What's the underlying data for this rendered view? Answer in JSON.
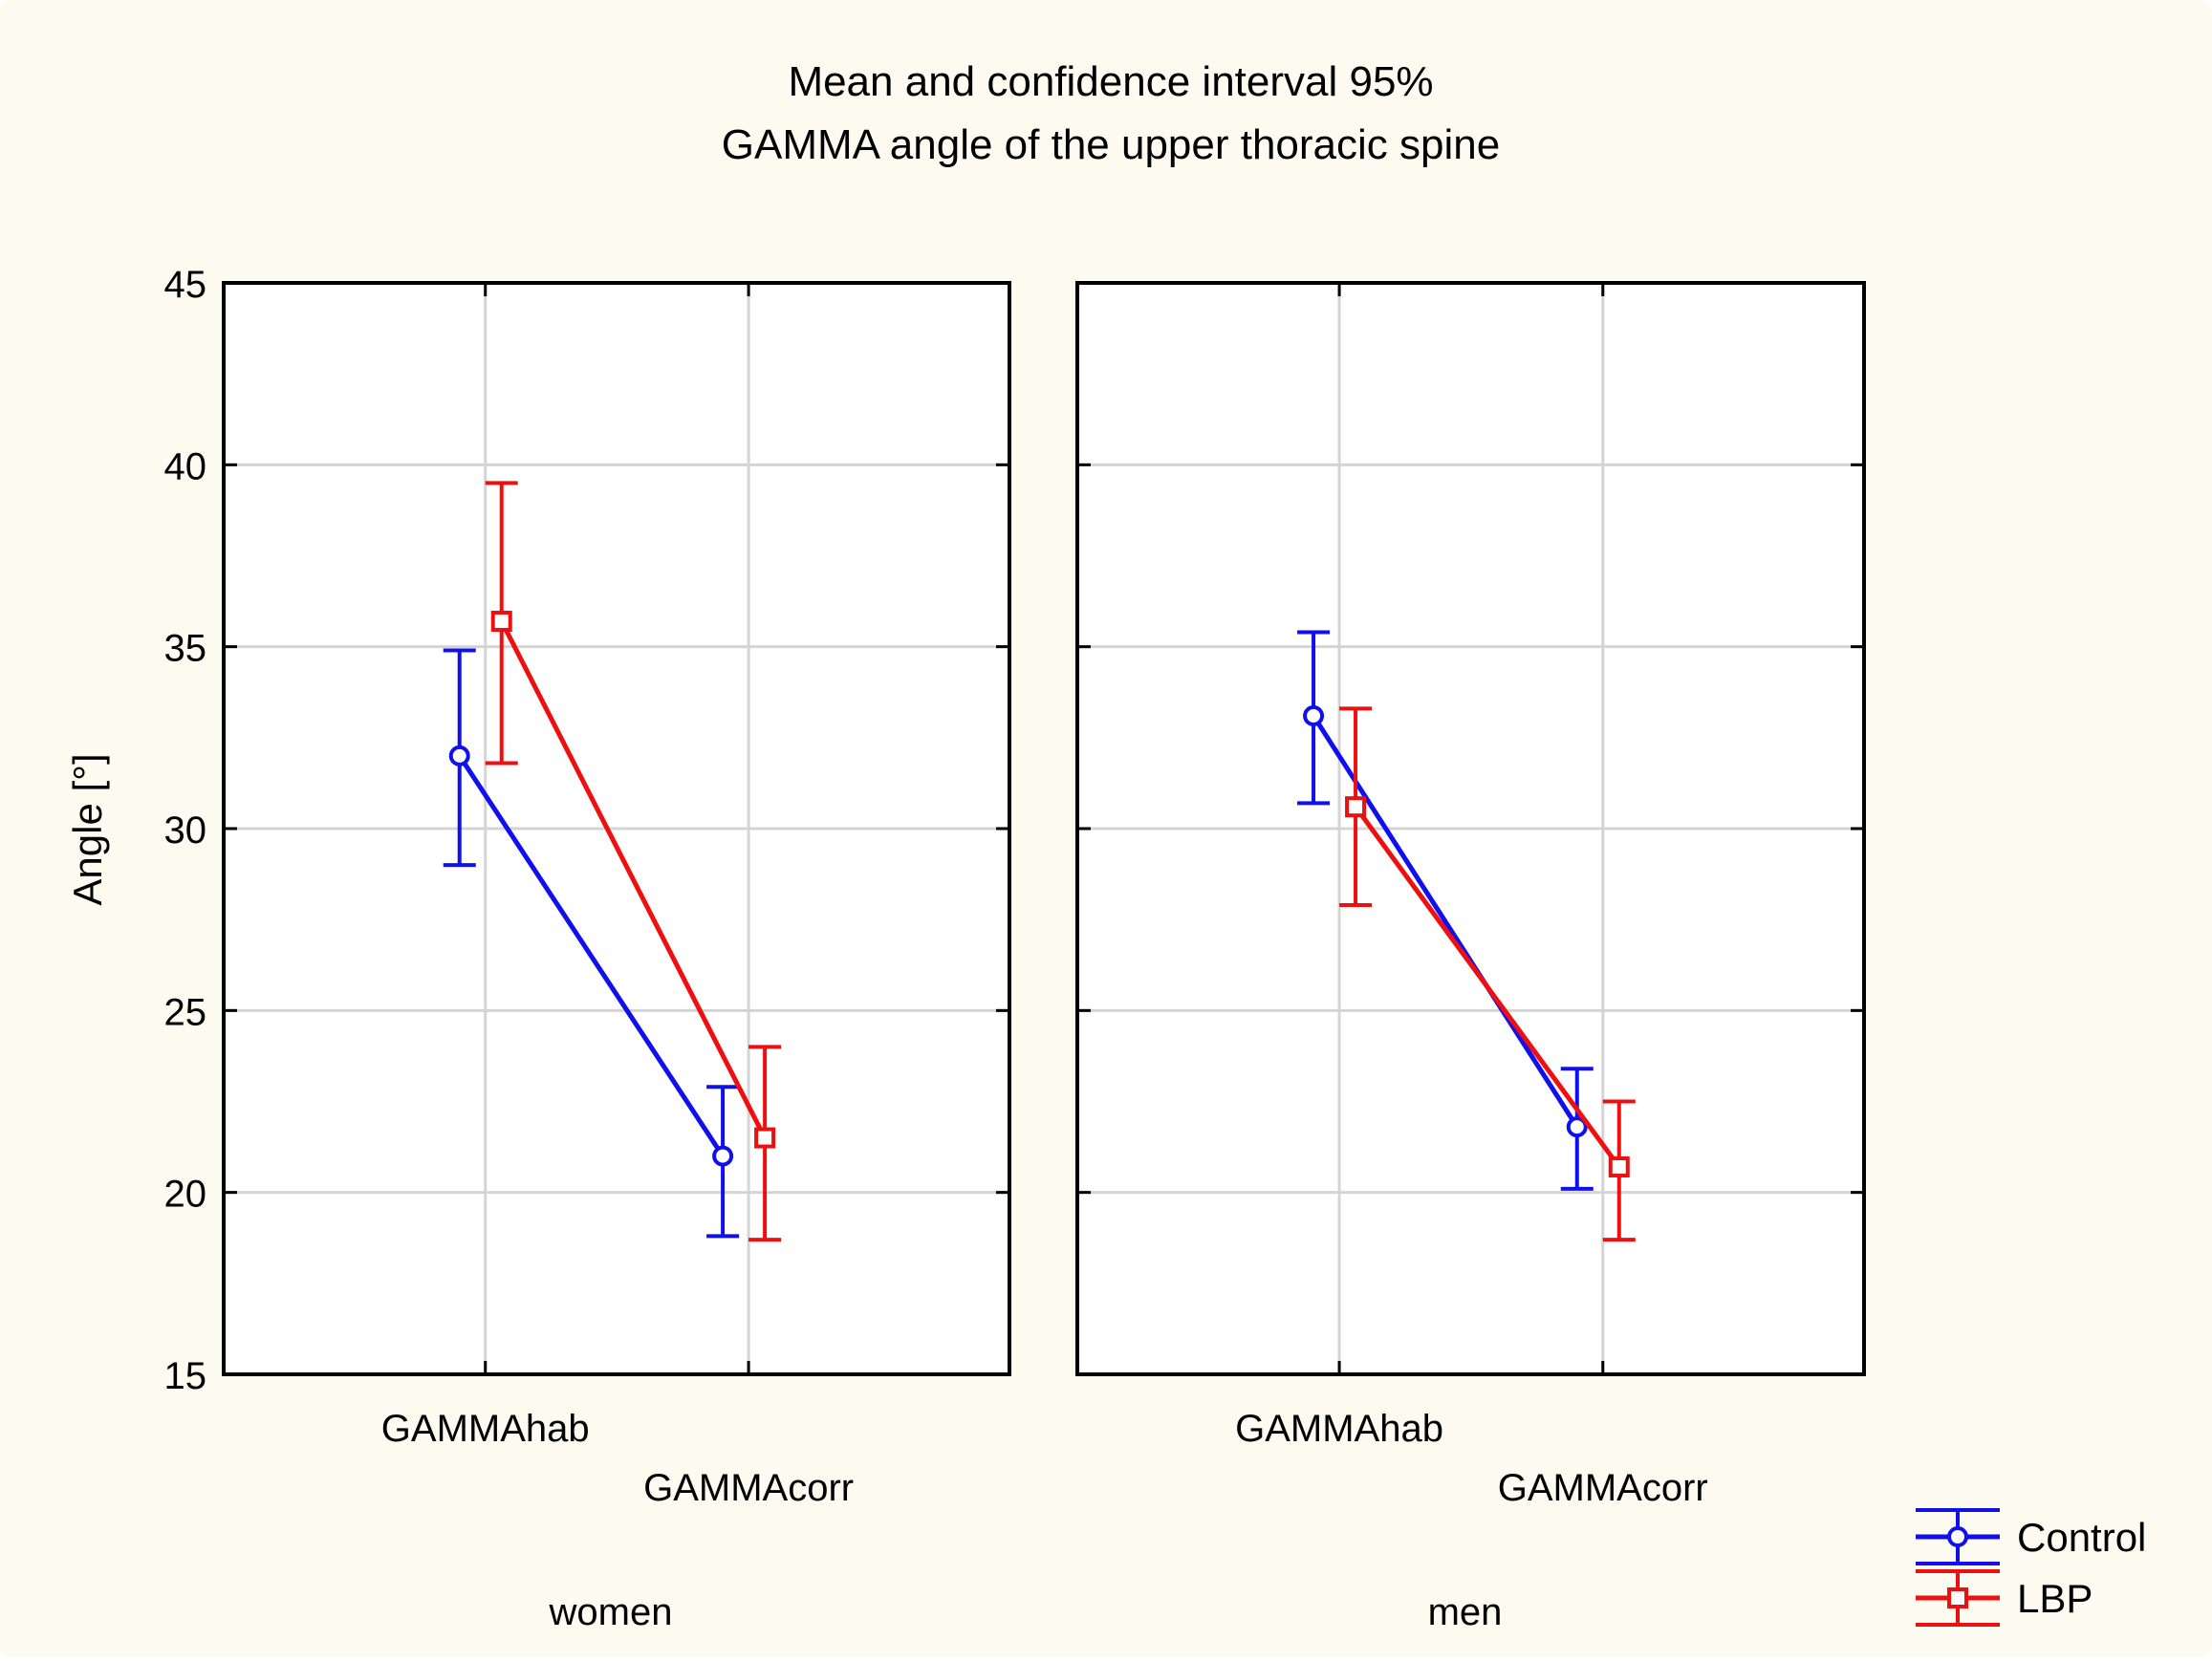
{
  "chart_data": {
    "type": "line",
    "title": "Mean and confidence interval 95%",
    "subtitle": "GAMMA angle of the upper thoracic spine",
    "ylabel": "Angle [°]",
    "ylim": [
      15,
      45
    ],
    "yticks": [
      15,
      20,
      25,
      30,
      35,
      40,
      45
    ],
    "categories": [
      "GAMMAhab",
      "GAMMAcorr"
    ],
    "grid": true,
    "legend_position": "bottom-right",
    "colors": {
      "background": "#fdfaf0",
      "plot_bg": "#ffffff",
      "grid": "#d4d4d4",
      "axis": "#000000"
    },
    "series_meta": [
      {
        "name": "Control",
        "color": "#1010ee",
        "marker": "circle"
      },
      {
        "name": "LBP",
        "color": "#ee1010",
        "marker": "square"
      }
    ],
    "panels": [
      {
        "label": "women",
        "series": [
          {
            "name": "Control",
            "values": [
              32.0,
              21.0
            ],
            "ci_low": [
              29.0,
              18.8
            ],
            "ci_high": [
              34.9,
              22.9
            ]
          },
          {
            "name": "LBP",
            "values": [
              35.7,
              21.5
            ],
            "ci_low": [
              31.8,
              18.7
            ],
            "ci_high": [
              39.5,
              24.0
            ]
          }
        ]
      },
      {
        "label": "men",
        "series": [
          {
            "name": "Control",
            "values": [
              33.1,
              21.8
            ],
            "ci_low": [
              30.7,
              20.1
            ],
            "ci_high": [
              35.4,
              23.4
            ]
          },
          {
            "name": "LBP",
            "values": [
              30.6,
              20.7
            ],
            "ci_low": [
              27.9,
              18.7
            ],
            "ci_high": [
              33.3,
              22.5
            ]
          }
        ]
      }
    ]
  }
}
